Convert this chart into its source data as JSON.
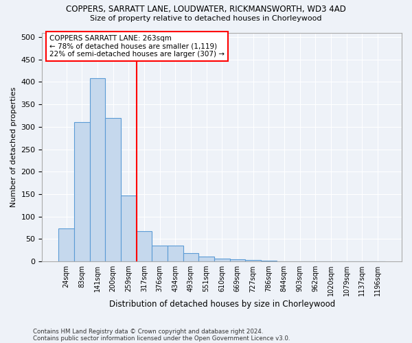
{
  "title": "COPPERS, SARRATT LANE, LOUDWATER, RICKMANSWORTH, WD3 4AD",
  "subtitle": "Size of property relative to detached houses in Chorleywood",
  "xlabel": "Distribution of detached houses by size in Chorleywood",
  "ylabel": "Number of detached properties",
  "bin_labels": [
    "24sqm",
    "83sqm",
    "141sqm",
    "200sqm",
    "259sqm",
    "317sqm",
    "376sqm",
    "434sqm",
    "493sqm",
    "551sqm",
    "610sqm",
    "669sqm",
    "727sqm",
    "786sqm",
    "844sqm",
    "903sqm",
    "962sqm",
    "1020sqm",
    "1079sqm",
    "1137sqm",
    "1196sqm"
  ],
  "bar_heights": [
    74,
    311,
    408,
    320,
    147,
    68,
    35,
    35,
    19,
    11,
    6,
    5,
    3,
    2,
    1,
    1,
    0,
    0,
    0,
    0,
    0
  ],
  "bar_color": "#c5d8ed",
  "bar_edge_color": "#5b9bd5",
  "vline_x": 4.5,
  "vline_color": "red",
  "annotation_text": "COPPERS SARRATT LANE: 263sqm\n← 78% of detached houses are smaller (1,119)\n22% of semi-detached houses are larger (307) →",
  "annotation_box_color": "white",
  "annotation_box_edge_color": "red",
  "ylim": [
    0,
    510
  ],
  "yticks": [
    0,
    50,
    100,
    150,
    200,
    250,
    300,
    350,
    400,
    450,
    500
  ],
  "footer_line1": "Contains HM Land Registry data © Crown copyright and database right 2024.",
  "footer_line2": "Contains public sector information licensed under the Open Government Licence v3.0.",
  "background_color": "#eef2f8",
  "grid_color": "white"
}
